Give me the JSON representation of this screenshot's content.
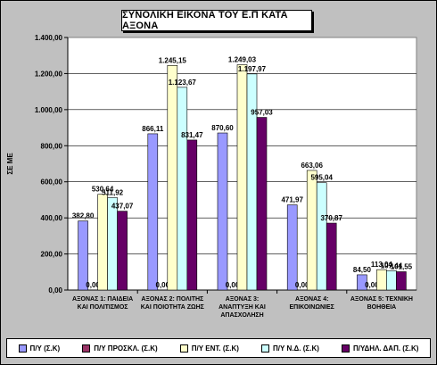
{
  "chart_data": {
    "type": "bar",
    "title": "ΣΥΝΟΛΙΚΗ ΕΙΚΟΝΑ ΤΟΥ Ε.Π ΚΑΤΑ ΑΞΟΝΑ",
    "ylabel": "ΣΕ ME",
    "xlabel": "",
    "ylim": [
      0,
      1400
    ],
    "yticks": [
      "0,00",
      "200,00",
      "400,00",
      "600,00",
      "800,00",
      "1.000,00",
      "1.200,00",
      "1.400,00"
    ],
    "grid": true,
    "legend_position": "bottom",
    "categories": [
      [
        "ΑΞΟΝΑΣ 1: ΠΑΙΔΕΙΑ",
        "ΚΑΙ ΠΟΛΙΤΙΣΜΟΣ"
      ],
      [
        "ΑΞΟΝΑΣ 2: ΠΟΛΙΤΗΣ",
        "ΚΑΙ ΠΟΙΟΤΗΤΑ ΖΩΗΣ"
      ],
      [
        "ΑΞΟΝΑΣ 3:",
        "ΑΝΑΠΤΥΞΗ ΚΑΙ",
        "ΑΠΑΣΧΟΛΗΣΗ"
      ],
      [
        "ΑΞΟΝΑΣ 4:",
        "ΕΠΙΚΟΙΝΩΝΙΕΣ"
      ],
      [
        "ΑΞΟΝΑΣ 5: ΤΕΧΝΙΚΗ",
        "ΒΟΗΘΕΙΑ"
      ]
    ],
    "series": [
      {
        "name": "Π/Υ (Σ.Κ)",
        "color": "#9999ff",
        "values": [
          382.8,
          866.11,
          870.6,
          471.97,
          84.5
        ],
        "labels": [
          "382,80",
          "866,11",
          "870,60",
          "471,97",
          "84,50"
        ]
      },
      {
        "name": "Π/Υ ΠΡΟΣΚΛ. (Σ.Κ)",
        "color": "#993366",
        "values": [
          0,
          0,
          0,
          0,
          0
        ],
        "labels": [
          "0,00",
          "0,00",
          "0,00",
          "0,00",
          "0,00"
        ]
      },
      {
        "name": "Π/Υ ΕΝΤ. (Σ.Κ)",
        "color": "#ffffcc",
        "values": [
          530.64,
          1245.15,
          1249.03,
          663.06,
          113.04
        ],
        "labels": [
          "530,64",
          "1.245,15",
          "1.249,03",
          "663,06",
          "113,04"
        ]
      },
      {
        "name": "Π/Υ Ν.Δ. (Σ.Κ)",
        "color": "#ccffff",
        "values": [
          511.92,
          1123.67,
          1197.97,
          595.04,
          107.44
        ],
        "labels": [
          "511,92",
          "1.123,67",
          "1.197,97",
          "595,04",
          "107,44"
        ]
      },
      {
        "name": "Π/ΥΔΗΛ. ΔΑΠ. (Σ.Κ)",
        "color": "#660066",
        "values": [
          437.07,
          831.47,
          957.03,
          370.87,
          101.55
        ],
        "labels": [
          "437,07",
          "831,47",
          "957,03",
          "370,87",
          "101,55"
        ]
      }
    ]
  }
}
